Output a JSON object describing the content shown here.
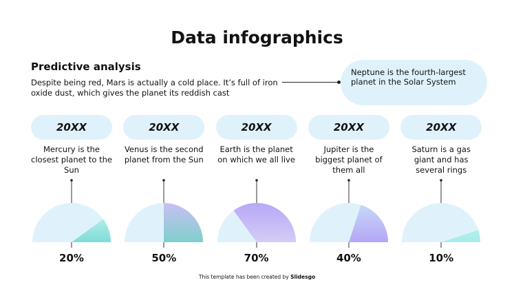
{
  "title": "Data infographics",
  "subtitle": "Predictive analysis",
  "description": "Despite being red, Mars is actually a cold place. It’s full of iron oxide dust, which gives the planet its reddish cast",
  "callout": "Neptune is the fourth-largest planet in the Solar System",
  "items": [
    {
      "year": "20XX",
      "text": "Mercury is the closest planet to the Sun",
      "percent_label": "20%",
      "value": 20,
      "colors": [
        "#aeeee6",
        "#7fdcd8"
      ]
    },
    {
      "year": "20XX",
      "text": "Venus is the second planet from the Sun",
      "percent_label": "50%",
      "value": 50,
      "colors": [
        "#c8c0f4",
        "#7fcfcc"
      ]
    },
    {
      "year": "20XX",
      "text": "Earth is the planet on which we all live",
      "percent_label": "70%",
      "value": 70,
      "colors": [
        "#b7a8f6",
        "#d4ccf7"
      ]
    },
    {
      "year": "20XX",
      "text": "Jupiter is the biggest planet of them all",
      "percent_label": "40%",
      "value": 40,
      "colors": [
        "#c6d8f8",
        "#b5a6f6"
      ]
    },
    {
      "year": "20XX",
      "text": "Saturn is a gas giant and has several rings",
      "percent_label": "10%",
      "value": 10,
      "colors": [
        "#b0f0ea",
        "#a7ecea"
      ]
    }
  ],
  "background_color": "#dff2fb",
  "footer": {
    "prefix": "This template has been created by ",
    "brand": "Slidesgo"
  }
}
